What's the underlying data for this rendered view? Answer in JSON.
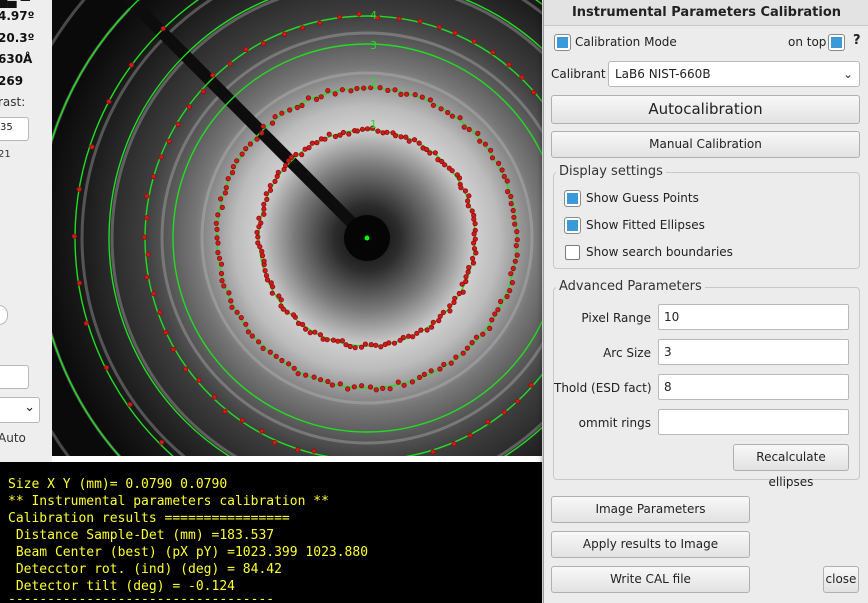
{
  "left_panel": {
    "values": [
      "4.97º",
      "20.3º",
      "630Å",
      "269"
    ],
    "contrast_label": "rast:",
    "contrast_value": "35",
    "small_value": "21",
    "auto_label": "Auto"
  },
  "image": {
    "ring_labels": [
      "1",
      "2",
      "3",
      "4"
    ],
    "colors": {
      "fit": "#22dd22",
      "guess_stroke": "#8b1010",
      "guess_fill": "#d01a1a",
      "beam_center": "#00ff00"
    }
  },
  "console": {
    "lines": [
      "Size X Y (mm)= 0.0790 0.0790",
      "** Instrumental parameters calibration **",
      "Calibration results ================",
      " Distance Sample-Det (mm) =183.537",
      " Beam Center (best) (pX pY) =1023.399 1023.880",
      " Detecctor rot. (ind) (deg) = 84.42",
      " Detector tilt (deg) = -0.124",
      "----------------------------------"
    ],
    "text_color": "#ffff33"
  },
  "calibration_window": {
    "title": "Instrumental Parameters Calibration",
    "calibration_mode_label": "Calibration Mode",
    "calibration_mode_checked": true,
    "on_top_label": "on top",
    "on_top_checked": true,
    "help_label": "?",
    "calibrant_label": "Calibrant",
    "calibrant_value": "LaB6 NIST-660B",
    "autocalibration_label": "Autocalibration",
    "manual_calibration_label": "Manual Calibration",
    "display_settings": {
      "title": "Display settings",
      "show_guess_points": "Show Guess Points",
      "show_guess_points_checked": true,
      "show_fitted_ellipses": "Show Fitted Ellipses",
      "show_fitted_ellipses_checked": true,
      "show_search_boundaries": "Show search boundaries",
      "show_search_boundaries_checked": false
    },
    "advanced_parameters": {
      "title": "Advanced Parameters",
      "pixel_range_label": "Pixel Range",
      "pixel_range_value": "10",
      "arc_size_label": "Arc Size",
      "arc_size_value": "3",
      "thold_label": "Thold (ESD fact)",
      "thold_value": "8",
      "ommit_rings_label": "ommit rings",
      "ommit_rings_value": "",
      "recalculate_label": "Recalculate ellipses"
    },
    "image_parameters_label": "Image Parameters",
    "apply_results_label": "Apply results to Image",
    "write_cal_label": "Write CAL file",
    "close_label": "close",
    "accent_color": "#3a99d8"
  }
}
